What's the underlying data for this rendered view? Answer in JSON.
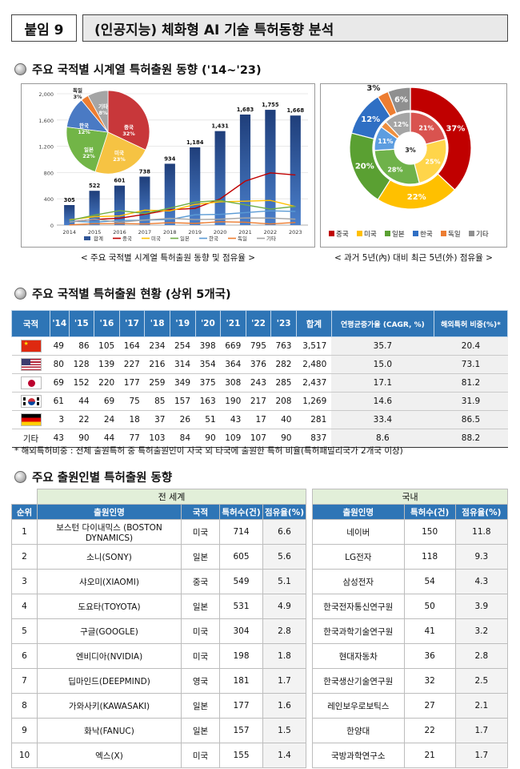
{
  "header": {
    "tag": "붙임 9",
    "title": "(인공지능) 체화형 AI 기술 특허동향 분석"
  },
  "section1": {
    "title": "주요 국적별 시계열 특허출원 동향 ('14~'23)",
    "caption_left": "< 주요 국적별 시계열 특허출원 동향 및 점유율 >",
    "caption_right": "< 과거 5년(內) 대비 최근 5년(外) 점유율 >"
  },
  "chart_data": [
    {
      "type": "bar",
      "categories": [
        "2014",
        "2015",
        "2016",
        "2017",
        "2018",
        "2019",
        "2020",
        "2021",
        "2022",
        "2023"
      ],
      "ylim": [
        0,
        2000
      ],
      "yticks": [
        "0",
        "400",
        "800",
        "1,200",
        "1,600",
        "2,000"
      ],
      "series": [
        {
          "name": "합계",
          "values": [
            305,
            522,
            601,
            738,
            934,
            1184,
            1431,
            1683,
            1755,
            1668
          ],
          "labels": [
            "305",
            "522",
            "601",
            "738",
            "934",
            "1,184",
            "1,431",
            "1,683",
            "1,755",
            "1,668"
          ],
          "color": "#2f5597"
        },
        {
          "name": "중국",
          "values": [
            49,
            86,
            105,
            164,
            234,
            254,
            398,
            669,
            795,
            763
          ],
          "color": "#c00000"
        },
        {
          "name": "미국",
          "values": [
            80,
            128,
            139,
            227,
            216,
            314,
            354,
            364,
            376,
            282
          ],
          "color": "#ffc000"
        },
        {
          "name": "일본",
          "values": [
            69,
            152,
            220,
            177,
            259,
            349,
            375,
            308,
            243,
            285
          ],
          "color": "#70ad47"
        },
        {
          "name": "한국",
          "values": [
            61,
            44,
            69,
            75,
            85,
            157,
            163,
            190,
            217,
            208
          ],
          "color": "#5b9bd5"
        },
        {
          "name": "독일",
          "values": [
            3,
            22,
            24,
            18,
            37,
            26,
            51,
            43,
            17,
            40
          ],
          "color": "#ed7d31"
        },
        {
          "name": "기타",
          "values": [
            43,
            90,
            44,
            77,
            103,
            84,
            90,
            109,
            107,
            90
          ],
          "color": "#a5a5a5"
        }
      ],
      "legend": [
        "합계",
        "중국",
        "미국",
        "일본",
        "한국",
        "독일",
        "기타"
      ]
    },
    {
      "type": "pie",
      "slices": [
        {
          "name": "중국",
          "value": 32,
          "label": "32%",
          "color": "#c8373a"
        },
        {
          "name": "미국",
          "value": 23,
          "label": "23%",
          "color": "#f6c343"
        },
        {
          "name": "일본",
          "value": 22,
          "label": "22%",
          "color": "#72b547"
        },
        {
          "name": "한국",
          "value": 12,
          "label": "12%",
          "color": "#4a7ac4"
        },
        {
          "name": "독일",
          "value": 3,
          "label": "3%",
          "color": "#ed7d31"
        },
        {
          "name": "기타",
          "value": 8,
          "label": "8%",
          "color": "#a5a5a5"
        }
      ]
    },
    {
      "type": "pie",
      "subtype": "double-donut",
      "inner": [
        {
          "name": "중국",
          "value": 21,
          "label": "21%",
          "color": "#d9534f"
        },
        {
          "name": "미국",
          "value": 25,
          "label": "25%",
          "color": "#ffd54a"
        },
        {
          "name": "일본",
          "value": 28,
          "label": "28%",
          "color": "#6fb24a"
        },
        {
          "name": "한국",
          "value": 11,
          "label": "11%",
          "color": "#5d9de0"
        },
        {
          "name": "독일",
          "value": 3,
          "label": "3%",
          "color": "#ef8f3e"
        },
        {
          "name": "기타",
          "value": 12,
          "label": "12%",
          "color": "#a5a5a5"
        }
      ],
      "outer": [
        {
          "name": "중국",
          "value": 37,
          "label": "37%",
          "color": "#c00000"
        },
        {
          "name": "미국",
          "value": 22,
          "label": "22%",
          "color": "#ffc000"
        },
        {
          "name": "일본",
          "value": 20,
          "label": "20%",
          "color": "#5aa032"
        },
        {
          "name": "한국",
          "value": 12,
          "label": "12%",
          "color": "#2f6fc4"
        },
        {
          "name": "독일",
          "value": 3,
          "label": "3%",
          "color": "#ed7d31"
        },
        {
          "name": "기타",
          "value": 6,
          "label": "6%",
          "color": "#8f8f8f"
        }
      ],
      "legend": [
        "중국",
        "미국",
        "일본",
        "한국",
        "독일",
        "기타"
      ]
    }
  ],
  "section2": {
    "title": "주요 국적별 특허출원 현황 (상위 5개국)",
    "columns": [
      "국적",
      "'14",
      "'15",
      "'16",
      "'17",
      "'18",
      "'19",
      "'20",
      "'21",
      "'22",
      "'23",
      "합계",
      "연평균증가율 (CAGR, %)",
      "해외특허 비중(%)*"
    ],
    "rows": [
      {
        "flag": "china-flag",
        "values": [
          "49",
          "86",
          "105",
          "164",
          "234",
          "254",
          "398",
          "669",
          "795",
          "763",
          "3,517",
          "35.7",
          "20.4"
        ]
      },
      {
        "flag": "usa-flag",
        "values": [
          "80",
          "128",
          "139",
          "227",
          "216",
          "314",
          "354",
          "364",
          "376",
          "282",
          "2,480",
          "15.0",
          "73.1"
        ]
      },
      {
        "flag": "japan-flag",
        "values": [
          "69",
          "152",
          "220",
          "177",
          "259",
          "349",
          "375",
          "308",
          "243",
          "285",
          "2,437",
          "17.1",
          "81.2"
        ]
      },
      {
        "flag": "korea-flag",
        "values": [
          "61",
          "44",
          "69",
          "75",
          "85",
          "157",
          "163",
          "190",
          "217",
          "208",
          "1,269",
          "14.6",
          "31.9"
        ]
      },
      {
        "flag": "germany-flag",
        "values": [
          "3",
          "22",
          "24",
          "18",
          "37",
          "26",
          "51",
          "43",
          "17",
          "40",
          "281",
          "33.4",
          "86.5"
        ]
      },
      {
        "label": "기타",
        "values": [
          "43",
          "90",
          "44",
          "77",
          "103",
          "84",
          "90",
          "109",
          "107",
          "90",
          "837",
          "8.6",
          "88.2"
        ]
      }
    ],
    "note": "* 해외특허비중 : 전체 출원특허 중 특허출원인이 자국 외 타국에 출원한 특허 비율(특허패밀리국가 2개국 이상)"
  },
  "section3": {
    "title": "주요 출원인별 특허출원 동향",
    "group_world": "전 세계",
    "group_domestic": "국내",
    "columns_world": [
      "순위",
      "출원인명",
      "국적",
      "특허수(건)",
      "점유율(%)"
    ],
    "columns_domestic": [
      "출원인명",
      "특허수(건)",
      "점유율(%)"
    ],
    "rows": [
      {
        "rank": "1",
        "w_name": "보스턴 다이내믹스 (BOSTON DYNAMICS)",
        "w_country": "미국",
        "w_count": "714",
        "w_share": "6.6",
        "d_name": "네이버",
        "d_count": "150",
        "d_share": "11.8"
      },
      {
        "rank": "2",
        "w_name": "소니(SONY)",
        "w_country": "일본",
        "w_count": "605",
        "w_share": "5.6",
        "d_name": "LG전자",
        "d_count": "118",
        "d_share": "9.3"
      },
      {
        "rank": "3",
        "w_name": "샤오미(XIAOMI)",
        "w_country": "중국",
        "w_count": "549",
        "w_share": "5.1",
        "d_name": "삼성전자",
        "d_count": "54",
        "d_share": "4.3"
      },
      {
        "rank": "4",
        "w_name": "도요타(TOYOTA)",
        "w_country": "일본",
        "w_count": "531",
        "w_share": "4.9",
        "d_name": "한국전자통신연구원",
        "d_count": "50",
        "d_share": "3.9"
      },
      {
        "rank": "5",
        "w_name": "구글(GOOGLE)",
        "w_country": "미국",
        "w_count": "304",
        "w_share": "2.8",
        "d_name": "한국과학기술연구원",
        "d_count": "41",
        "d_share": "3.2"
      },
      {
        "rank": "6",
        "w_name": "엔비디아(NVIDIA)",
        "w_country": "미국",
        "w_count": "198",
        "w_share": "1.8",
        "d_name": "현대자동차",
        "d_count": "36",
        "d_share": "2.8"
      },
      {
        "rank": "7",
        "w_name": "딥마인드(DEEPMIND)",
        "w_country": "영국",
        "w_count": "181",
        "w_share": "1.7",
        "d_name": "한국생산기술연구원",
        "d_count": "32",
        "d_share": "2.5"
      },
      {
        "rank": "8",
        "w_name": "가와사키(KAWASAKI)",
        "w_country": "일본",
        "w_count": "177",
        "w_share": "1.6",
        "d_name": "레인보우로보틱스",
        "d_count": "27",
        "d_share": "2.1"
      },
      {
        "rank": "9",
        "w_name": "화낙(FANUC)",
        "w_country": "일본",
        "w_count": "157",
        "w_share": "1.5",
        "d_name": "한양대",
        "d_count": "22",
        "d_share": "1.7"
      },
      {
        "rank": "10",
        "w_name": "엑스(X)",
        "w_country": "미국",
        "w_count": "155",
        "w_share": "1.4",
        "d_name": "국방과학연구소",
        "d_count": "21",
        "d_share": "1.7"
      }
    ]
  }
}
